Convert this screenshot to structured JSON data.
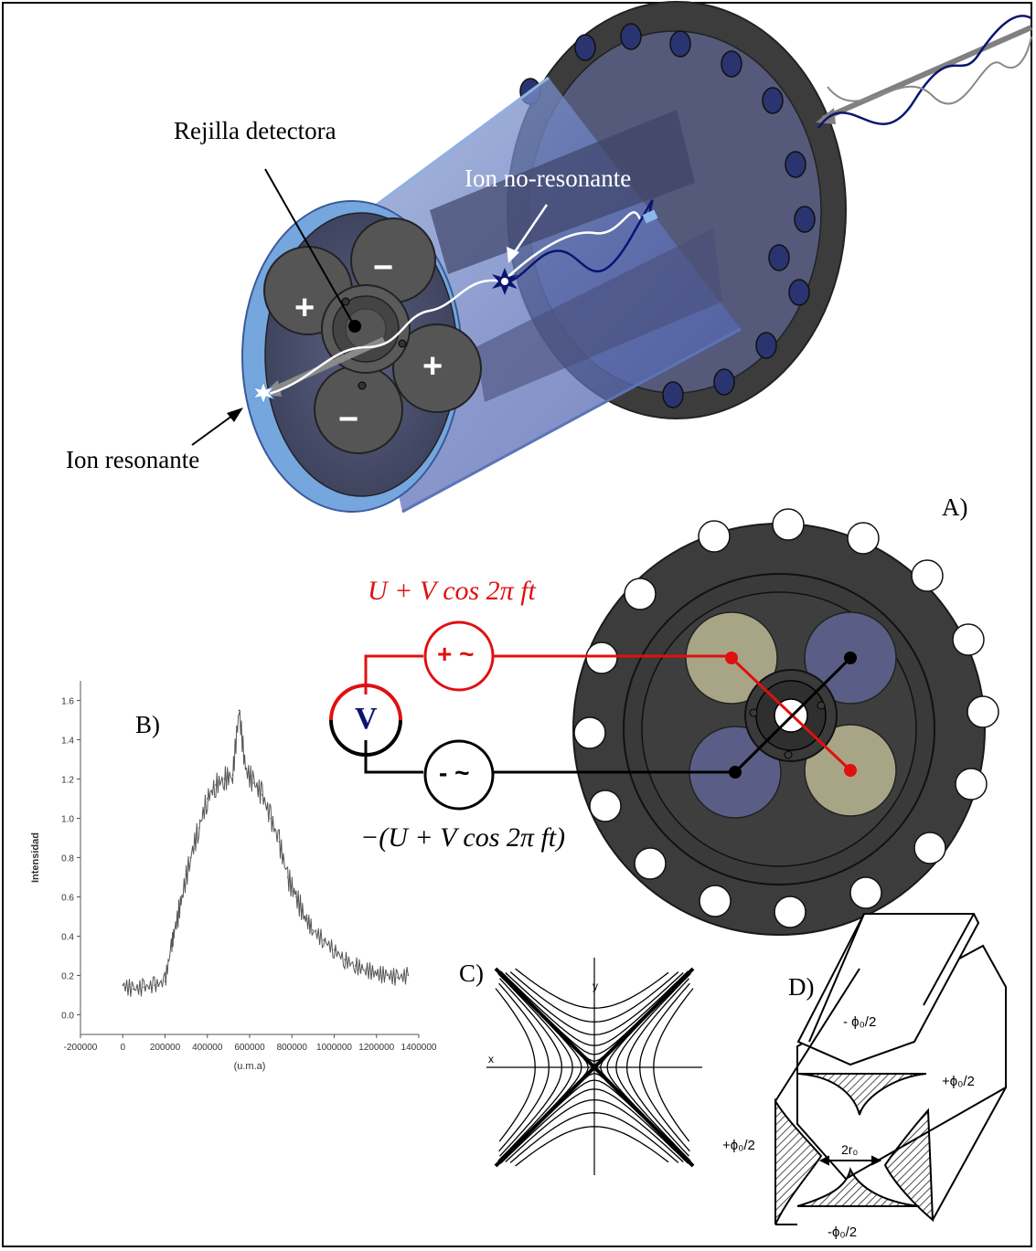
{
  "labels": {
    "rejilla": "Rejilla detectora",
    "ion_no_resonante": "Ion no-resonante",
    "ion_resonante": "Ion resonante",
    "panel_a": "A)",
    "panel_b": "B)",
    "panel_c": "C)",
    "panel_d": "D)"
  },
  "electrodes": {
    "plus": "+",
    "minus": "−"
  },
  "circuit": {
    "voltage_pos": "U + V cos 2π ft",
    "voltage_neg": "−(U + V cos 2π ft)",
    "source_pos": "+ ~",
    "source_neg": "- ~",
    "meter": "V"
  },
  "quad_labels": {
    "top": "- ϕ₀/2",
    "right": "+ϕ₀/2",
    "left": "+ϕ₀/2",
    "bottom": "-ϕ₀/2",
    "gap": "2r₀"
  },
  "field_axes": {
    "x": "x",
    "y": "y"
  },
  "colors": {
    "red": "#e01010",
    "navy": "#0a1570",
    "tube": "#6a86c8",
    "flange": "#3c3c3c"
  },
  "chart_data": {
    "type": "line",
    "title": "",
    "xlabel": "(u.m.a)",
    "ylabel": "Intensidad",
    "xlim": [
      -200000,
      1400000
    ],
    "ylim": [
      -0.1,
      1.7
    ],
    "xticks": [
      -200000,
      0,
      200000,
      400000,
      600000,
      800000,
      1000000,
      1200000,
      1400000
    ],
    "yticks": [
      0.0,
      0.2,
      0.4,
      0.6,
      0.8,
      1.0,
      1.2,
      1.4,
      1.6
    ],
    "xtick_labels": [
      "-200000",
      "0",
      "200000",
      "400000",
      "600000",
      "800000",
      "1000000",
      "1200000",
      "1400000"
    ],
    "ytick_labels": [
      "0.0",
      "0.2",
      "0.4",
      "0.6",
      "0.8",
      "1.0",
      "1.2",
      "1.4",
      "1.6"
    ],
    "series": [
      {
        "x": [
          0,
          50000,
          100000,
          150000,
          200000,
          230000,
          250000,
          280000,
          320000,
          360000,
          400000,
          440000,
          480000,
          520000,
          550000,
          580000,
          620000,
          660000,
          700000,
          740000,
          780000,
          820000,
          860000,
          900000,
          950000,
          1000000,
          1050000,
          1100000,
          1150000,
          1200000,
          1250000,
          1300000,
          1350000
        ],
        "y": [
          0.15,
          0.13,
          0.14,
          0.15,
          0.17,
          0.35,
          0.45,
          0.6,
          0.8,
          0.95,
          1.1,
          1.17,
          1.2,
          1.22,
          1.55,
          1.25,
          1.18,
          1.12,
          1.0,
          0.88,
          0.7,
          0.6,
          0.5,
          0.43,
          0.38,
          0.33,
          0.28,
          0.25,
          0.23,
          0.21,
          0.2,
          0.19,
          0.2
        ]
      }
    ],
    "grid": false
  }
}
